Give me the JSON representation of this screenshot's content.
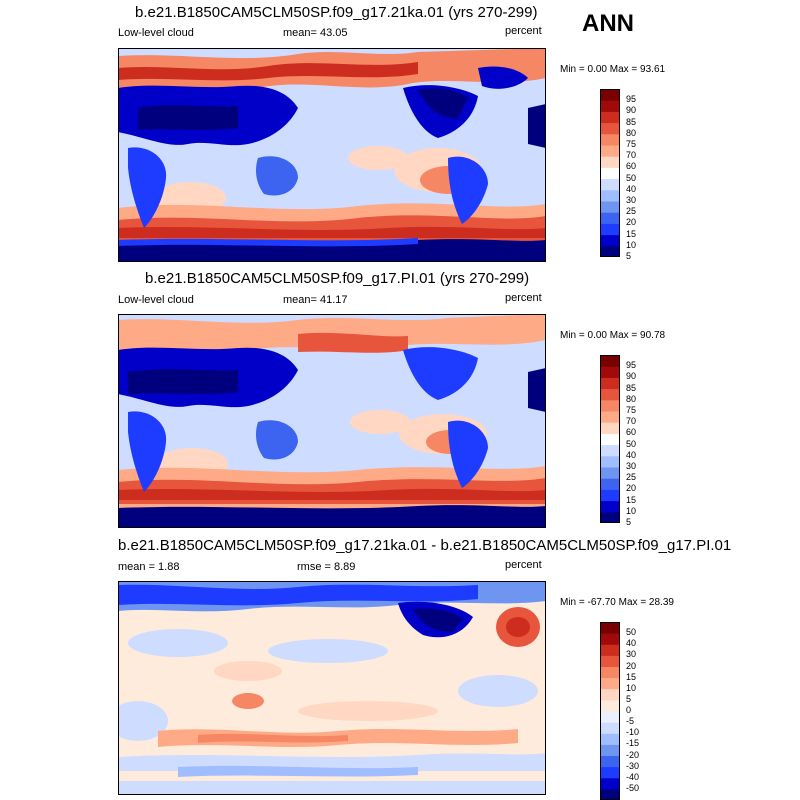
{
  "season": "ANN",
  "colors": {
    "abs_scale": [
      "#00007f",
      "#0000c8",
      "#1e3cff",
      "#3c64f0",
      "#6e96f0",
      "#a0beff",
      "#cddcff",
      "#ffffff",
      "#ffd7c3",
      "#ffaa87",
      "#f58764",
      "#e6553c",
      "#cd2d1e",
      "#a00a0a",
      "#780000"
    ],
    "diff_scale": [
      "#00007f",
      "#0000c8",
      "#1e3cff",
      "#3c64f0",
      "#6e96f0",
      "#a0beff",
      "#cddcff",
      "#ebf0ff",
      "#ffebdc",
      "#ffd7c3",
      "#ffaa87",
      "#f58764",
      "#e6553c",
      "#cd2d1e",
      "#a00a0a",
      "#780000"
    ]
  },
  "chart_data": [
    {
      "type": "heatmap",
      "title": "b.e21.B1850CAM5CLM50SP.f09_g17.21ka.01 (yrs 270-299)",
      "left_label": "Low-level cloud",
      "center_label": "mean=  43.05",
      "units": "percent",
      "min_max": "Min =   0.00 Max =  93.61",
      "colorbar_labels": [
        "95",
        "90",
        "85",
        "80",
        "75",
        "70",
        "60",
        "50",
        "40",
        "30",
        "25",
        "20",
        "15",
        "10",
        "5"
      ]
    },
    {
      "type": "heatmap",
      "title": "b.e21.B1850CAM5CLM50SP.f09_g17.PI.01 (yrs 270-299)",
      "left_label": "Low-level cloud",
      "center_label": "mean=  41.17",
      "units": "percent",
      "min_max": "Min =   0.00 Max =  90.78",
      "colorbar_labels": [
        "95",
        "90",
        "85",
        "80",
        "75",
        "70",
        "60",
        "50",
        "40",
        "30",
        "25",
        "20",
        "15",
        "10",
        "5"
      ]
    },
    {
      "type": "heatmap",
      "title": "b.e21.B1850CAM5CLM50SP.f09_g17.21ka.01 - b.e21.B1850CAM5CLM50SP.f09_g17.PI.01",
      "left_label": "mean =   1.88",
      "center_label": "rmse =   8.89",
      "units": "percent",
      "min_max": "Min = -67.70 Max =  28.39",
      "colorbar_labels": [
        "50",
        "40",
        "30",
        "20",
        "15",
        "10",
        "5",
        "0",
        "-5",
        "-10",
        "-15",
        "-20",
        "-30",
        "-40",
        "-50"
      ]
    }
  ]
}
